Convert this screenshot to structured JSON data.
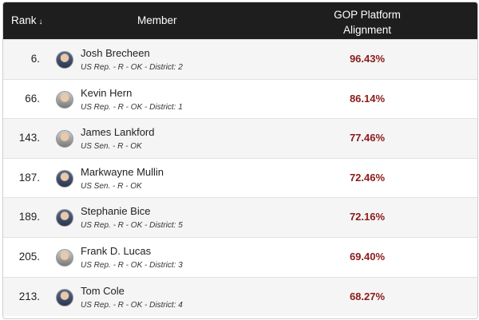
{
  "header": {
    "rank_label": "Rank",
    "rank_sort_icon": "sort-down-arrow",
    "member_label": "Member",
    "alignment_line1": "GOP Platform",
    "alignment_line2": "Alignment"
  },
  "rows": [
    {
      "rank": "6.",
      "name": "Josh Brecheen",
      "sub": "US Rep. - R - OK - District: 2",
      "pct": "96.43%"
    },
    {
      "rank": "66.",
      "name": "Kevin Hern",
      "sub": "US Rep. - R - OK - District: 1",
      "pct": "86.14%"
    },
    {
      "rank": "143.",
      "name": "James Lankford",
      "sub": "US Sen. - R - OK",
      "pct": "77.46%"
    },
    {
      "rank": "187.",
      "name": "Markwayne Mullin",
      "sub": "US Sen. - R - OK",
      "pct": "72.46%"
    },
    {
      "rank": "189.",
      "name": "Stephanie Bice",
      "sub": "US Rep. - R - OK - District: 5",
      "pct": "72.16%"
    },
    {
      "rank": "205.",
      "name": "Frank D. Lucas",
      "sub": "US Rep. - R - OK - District: 3",
      "pct": "69.40%"
    },
    {
      "rank": "213.",
      "name": "Tom Cole",
      "sub": "US Rep. - R - OK - District: 4",
      "pct": "68.27%"
    }
  ],
  "colors": {
    "header_bg": "#1e1e1e",
    "pct_color": "#8b1a1a"
  }
}
